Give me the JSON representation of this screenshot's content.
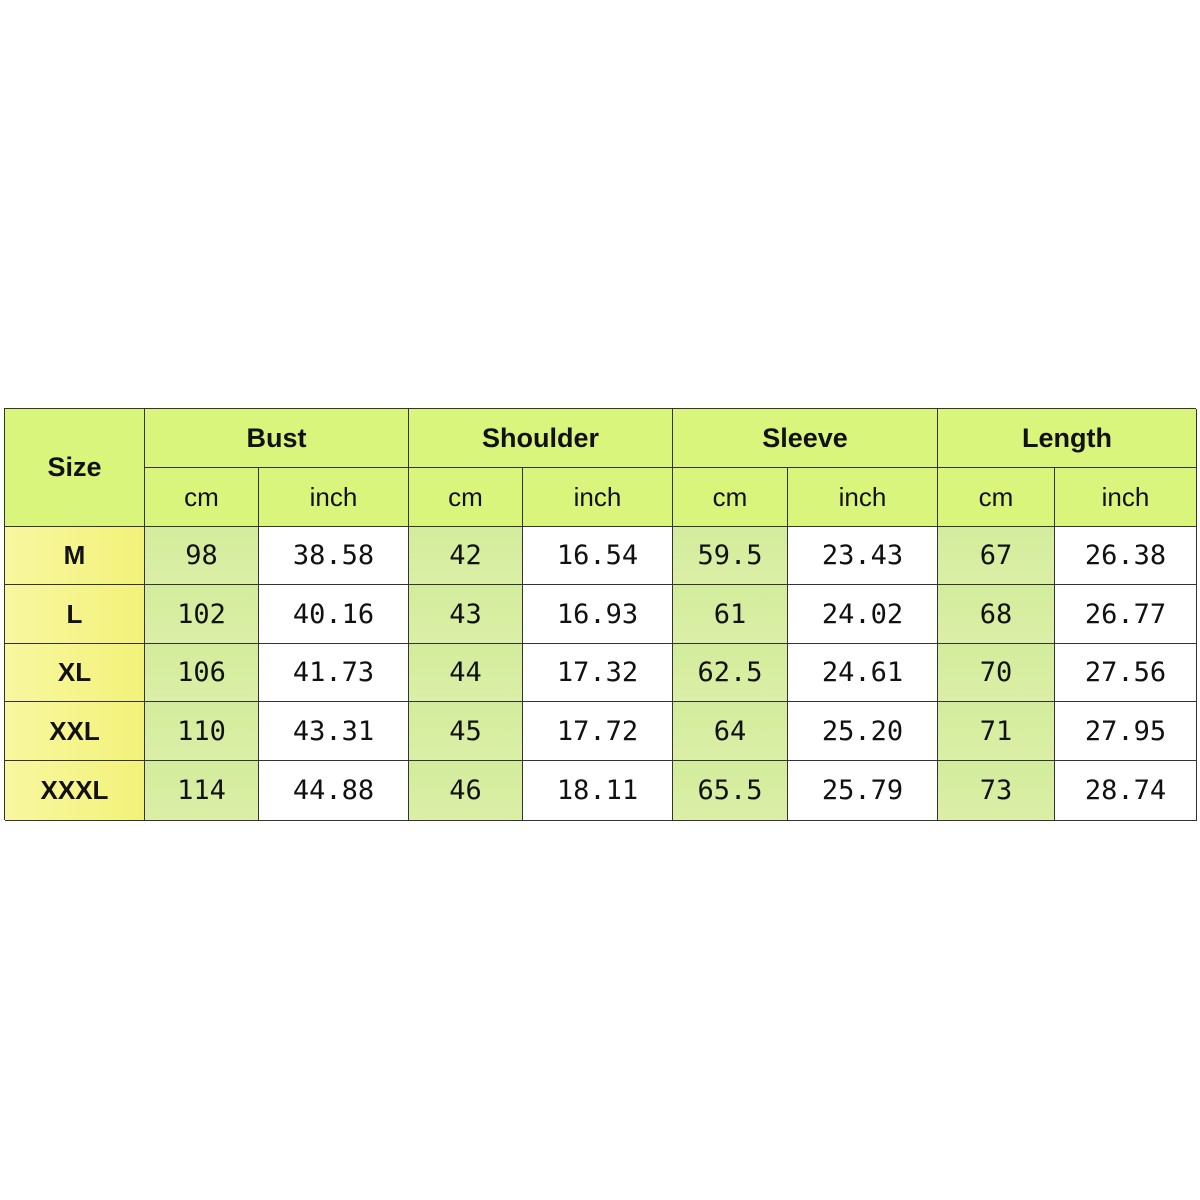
{
  "table": {
    "corner": "Size",
    "groups": [
      "Bust",
      "Shoulder",
      "Sleeve",
      "Length"
    ],
    "subheaders": [
      "cm",
      "inch",
      "cm",
      "inch",
      "cm",
      "inch",
      "cm",
      "inch"
    ],
    "rows": [
      {
        "size": "M",
        "cells": [
          "98",
          "38.58",
          "42",
          "16.54",
          "59.5",
          "23.43",
          "67",
          "26.38"
        ]
      },
      {
        "size": "L",
        "cells": [
          "102",
          "40.16",
          "43",
          "16.93",
          "61",
          "24.02",
          "68",
          "26.77"
        ]
      },
      {
        "size": "XL",
        "cells": [
          "106",
          "41.73",
          "44",
          "17.32",
          "62.5",
          "24.61",
          "70",
          "27.56"
        ]
      },
      {
        "size": "XXL",
        "cells": [
          "110",
          "43.31",
          "45",
          "17.72",
          "64",
          "25.20",
          "71",
          "27.95"
        ]
      },
      {
        "size": "XXXL",
        "cells": [
          "114",
          "44.88",
          "46",
          "18.11",
          "65.5",
          "25.79",
          "73",
          "28.74"
        ]
      }
    ]
  }
}
